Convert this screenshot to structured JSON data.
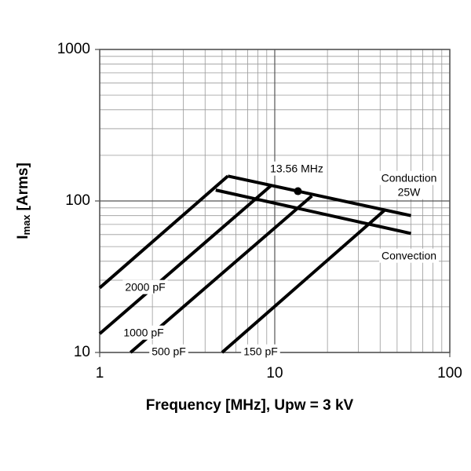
{
  "chart_data": {
    "type": "line",
    "x_log": true,
    "y_log": true,
    "x_label": "Frequency [MHz], Upw = 3 kV",
    "y_label": {
      "main": "I",
      "sub": "max",
      "unit": "[Arms]"
    },
    "xlim": [
      1,
      100
    ],
    "ylim": [
      10,
      1000
    ],
    "xticks": [
      1,
      10,
      100
    ],
    "yticks": [
      10,
      100,
      1000
    ],
    "xminor": [
      2,
      3,
      4,
      5,
      6,
      7,
      8,
      9,
      20,
      30,
      40,
      50,
      60,
      70,
      80,
      90
    ],
    "yminor": [
      20,
      30,
      40,
      50,
      60,
      70,
      80,
      90,
      200,
      300,
      400,
      500,
      600,
      700,
      800,
      900
    ],
    "grid": true,
    "series": [
      {
        "name": "2000 pF",
        "color": "#000000",
        "x": [
          1,
          5.4
        ],
        "values": [
          26.7,
          146
        ]
      },
      {
        "name": "1000 pF",
        "color": "#000000",
        "x": [
          1,
          9.5
        ],
        "values": [
          13.3,
          126
        ]
      },
      {
        "name": "500 pF",
        "color": "#000000",
        "x": [
          1.5,
          16.3
        ],
        "values": [
          10,
          108
        ]
      },
      {
        "name": "150 pF",
        "color": "#000000",
        "x": [
          5,
          42.5
        ],
        "values": [
          10,
          87
        ]
      },
      {
        "name": "Conduction",
        "color": "#000000",
        "x": [
          5.4,
          60
        ],
        "values": [
          146,
          80
        ]
      },
      {
        "name": "Convection",
        "color": "#000000",
        "x": [
          4.6,
          60
        ],
        "values": [
          118,
          61
        ]
      }
    ],
    "annotations": [
      "13.56 MHz",
      "25W"
    ],
    "marker": {
      "x": 13.56,
      "y": 116
    }
  }
}
